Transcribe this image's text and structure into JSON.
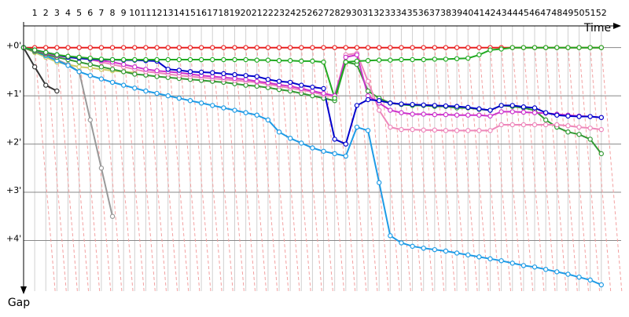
{
  "chart_data": {
    "type": "line",
    "x_label": "Time",
    "y_label": "Gap",
    "x": [
      0,
      1,
      2,
      3,
      4,
      5,
      6,
      7,
      8,
      9,
      10,
      11,
      12,
      13,
      14,
      15,
      16,
      17,
      18,
      19,
      20,
      21,
      22,
      23,
      24,
      25,
      26,
      27,
      28,
      29,
      30,
      31,
      32,
      33,
      34,
      35,
      36,
      37,
      38,
      39,
      40,
      41,
      42,
      43,
      44,
      45,
      46,
      47,
      48,
      49,
      50,
      51,
      52
    ],
    "xlim": [
      0,
      53.5
    ],
    "xticks": [
      1,
      2,
      3,
      4,
      5,
      6,
      7,
      8,
      9,
      10,
      11,
      12,
      13,
      14,
      15,
      16,
      17,
      18,
      19,
      20,
      21,
      22,
      23,
      24,
      25,
      26,
      27,
      28,
      29,
      30,
      31,
      32,
      33,
      34,
      35,
      36,
      37,
      38,
      39,
      40,
      41,
      42,
      43,
      44,
      45,
      46,
      47,
      48,
      49,
      50,
      51,
      52
    ],
    "ylim": [
      -0.45,
      5.05
    ],
    "yticks": [
      {
        "value": 0,
        "label": "+0'"
      },
      {
        "value": 1,
        "label": "+1'"
      },
      {
        "value": 2,
        "label": "+2'"
      },
      {
        "value": 3,
        "label": "+3'"
      },
      {
        "value": 4,
        "label": "+4'"
      }
    ],
    "grid": true,
    "series": [
      {
        "color": "#e82020",
        "values": [
          0,
          0,
          0,
          0,
          0,
          0,
          0,
          0,
          0,
          0,
          0,
          0,
          0,
          0,
          0,
          0,
          0,
          0,
          0,
          0,
          0,
          0,
          0,
          0,
          0,
          0,
          0,
          0,
          0,
          0,
          0,
          0,
          0,
          0,
          0,
          0,
          0,
          0,
          0,
          0,
          0,
          0,
          0,
          0,
          0,
          0,
          0,
          0,
          0,
          0,
          0,
          0,
          0
        ]
      },
      {
        "color": "#cccc66",
        "values": [
          0,
          0.1,
          0.2,
          0.3,
          0.35,
          0.4,
          0.42,
          0.45,
          0.48,
          0.5,
          0.52,
          null,
          null,
          null,
          null,
          null,
          null,
          null,
          null,
          null,
          null,
          null,
          null,
          null,
          null,
          null,
          null,
          null,
          null,
          null,
          null,
          null,
          null,
          null,
          null,
          null,
          null,
          null,
          null,
          null,
          null,
          null,
          null,
          null,
          null,
          null,
          null,
          null,
          null,
          null,
          null,
          null,
          null
        ]
      },
      {
        "color": "#999999",
        "values": [
          0,
          0.05,
          0.15,
          0.25,
          0.35,
          0.5,
          1.5,
          2.5,
          3.5,
          null,
          null,
          null,
          null,
          null,
          null,
          null,
          null,
          null,
          null,
          null,
          null,
          null,
          null,
          null,
          null,
          null,
          null,
          null,
          null,
          null,
          null,
          null,
          null,
          null,
          null,
          null,
          null,
          null,
          null,
          null,
          null,
          null,
          null,
          null,
          null,
          null,
          null,
          null,
          null,
          null,
          null,
          null,
          null
        ]
      },
      {
        "color": "#333333",
        "values": [
          0,
          0.4,
          0.78,
          0.9,
          null,
          null,
          null,
          null,
          null,
          null,
          null,
          null,
          null,
          null,
          null,
          null,
          null,
          null,
          null,
          null,
          null,
          null,
          null,
          null,
          null,
          null,
          null,
          null,
          null,
          null,
          null,
          null,
          null,
          null,
          null,
          null,
          null,
          null,
          null,
          null,
          null,
          null,
          null,
          null,
          null,
          null,
          null,
          null,
          null,
          null,
          null,
          null,
          null
        ]
      },
      {
        "color": "#1e9be6",
        "values": [
          0,
          0.08,
          0.17,
          0.27,
          0.37,
          0.5,
          0.58,
          0.65,
          0.72,
          0.78,
          0.84,
          0.9,
          0.95,
          1.0,
          1.05,
          1.1,
          1.15,
          1.2,
          1.25,
          1.3,
          1.35,
          1.4,
          1.5,
          1.75,
          1.88,
          1.98,
          2.08,
          2.15,
          2.2,
          2.25,
          1.65,
          1.72,
          2.8,
          3.9,
          4.05,
          4.12,
          4.16,
          4.19,
          4.22,
          4.26,
          4.3,
          4.34,
          4.38,
          4.42,
          4.47,
          4.52,
          4.55,
          4.6,
          4.65,
          4.7,
          4.76,
          4.82,
          4.92
        ]
      },
      {
        "color": "#339933",
        "values": [
          0,
          0.08,
          0.14,
          0.2,
          0.25,
          0.3,
          0.35,
          0.4,
          0.45,
          0.5,
          0.55,
          0.57,
          0.6,
          0.62,
          0.64,
          0.66,
          0.68,
          0.7,
          0.72,
          0.75,
          0.78,
          0.8,
          0.83,
          0.87,
          0.9,
          0.95,
          1.0,
          1.05,
          1.1,
          0.3,
          0.35,
          0.9,
          1.05,
          1.15,
          1.18,
          1.2,
          1.2,
          1.22,
          1.22,
          1.25,
          1.25,
          1.28,
          1.3,
          1.2,
          1.22,
          1.25,
          1.3,
          1.5,
          1.65,
          1.75,
          1.8,
          1.9,
          2.2
        ]
      },
      {
        "color": "#ee88bb",
        "values": [
          0,
          0.05,
          0.1,
          0.15,
          0.18,
          0.2,
          0.25,
          0.3,
          0.35,
          0.4,
          0.45,
          0.5,
          0.52,
          0.55,
          0.58,
          0.6,
          0.62,
          0.64,
          0.66,
          0.68,
          0.7,
          0.72,
          0.76,
          0.8,
          0.84,
          0.88,
          0.92,
          0.98,
          1.02,
          0.15,
          0.12,
          0.7,
          1.3,
          1.65,
          1.7,
          1.7,
          1.71,
          1.71,
          1.72,
          1.72,
          1.72,
          1.72,
          1.72,
          1.6,
          1.6,
          1.6,
          1.6,
          1.6,
          1.6,
          1.62,
          1.65,
          1.67,
          1.7
        ]
      },
      {
        "color": "#cc33cc",
        "values": [
          0,
          0.06,
          0.12,
          0.17,
          0.2,
          0.22,
          0.24,
          0.27,
          0.3,
          0.35,
          0.4,
          0.45,
          0.48,
          0.5,
          0.52,
          0.55,
          0.58,
          0.6,
          0.62,
          0.64,
          0.66,
          0.7,
          0.73,
          0.77,
          0.8,
          0.85,
          0.9,
          0.95,
          1.0,
          0.2,
          0.15,
          1.0,
          1.15,
          1.3,
          1.35,
          1.38,
          1.38,
          1.39,
          1.39,
          1.4,
          1.4,
          1.4,
          1.42,
          1.33,
          1.33,
          1.34,
          1.35,
          1.36,
          1.38,
          1.4,
          1.42,
          1.43,
          1.45
        ]
      },
      {
        "color": "#0000cc",
        "values": [
          0,
          0.05,
          0.1,
          0.15,
          0.2,
          0.22,
          0.24,
          0.25,
          0.25,
          0.26,
          0.26,
          0.27,
          0.28,
          0.45,
          0.47,
          0.5,
          0.51,
          0.52,
          0.54,
          0.56,
          0.58,
          0.6,
          0.66,
          0.7,
          0.72,
          0.78,
          0.82,
          0.85,
          1.9,
          2.0,
          1.2,
          1.08,
          1.1,
          1.15,
          1.17,
          1.18,
          1.19,
          1.2,
          1.21,
          1.22,
          1.24,
          1.27,
          1.3,
          1.2,
          1.2,
          1.23,
          1.25,
          1.35,
          1.4,
          1.42,
          1.43,
          1.43,
          1.45
        ]
      },
      {
        "color": "#22aa22",
        "values": [
          0,
          0.05,
          0.1,
          0.15,
          0.18,
          0.2,
          0.22,
          0.24,
          0.25,
          0.25,
          0.25,
          0.25,
          0.25,
          0.25,
          0.25,
          0.25,
          0.25,
          0.25,
          0.25,
          0.25,
          0.25,
          0.26,
          0.26,
          0.27,
          0.27,
          0.28,
          0.28,
          0.3,
          1.05,
          0.3,
          0.28,
          0.27,
          0.26,
          0.26,
          0.25,
          0.25,
          0.25,
          0.24,
          0.24,
          0.23,
          0.22,
          0.15,
          0.05,
          0.03,
          0,
          0,
          0,
          0,
          0,
          0,
          0,
          0,
          0
        ]
      }
    ]
  }
}
